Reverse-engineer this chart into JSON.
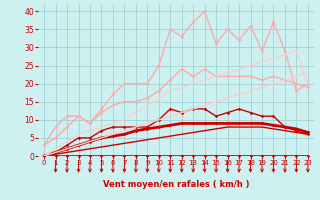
{
  "title": "",
  "xlabel": "Vent moyen/en rafales ( km/h )",
  "ylabel": "",
  "xlim": [
    -0.5,
    23.5
  ],
  "ylim": [
    0,
    42
  ],
  "xticks": [
    0,
    1,
    2,
    3,
    4,
    5,
    6,
    7,
    8,
    9,
    10,
    11,
    12,
    13,
    14,
    15,
    16,
    17,
    18,
    19,
    20,
    21,
    22,
    23
  ],
  "yticks": [
    0,
    5,
    10,
    15,
    20,
    25,
    30,
    35,
    40
  ],
  "bg_color": "#cdf0f0",
  "grid_color": "#99cccc",
  "lines": [
    {
      "x": [
        0,
        1,
        2,
        3,
        4,
        5,
        6,
        7,
        8,
        9,
        10,
        11,
        12,
        13,
        14,
        15,
        16,
        17,
        18,
        19,
        20,
        21,
        22,
        23
      ],
      "y": [
        0,
        0,
        0,
        0,
        0,
        0,
        0,
        0,
        0,
        0,
        0,
        0,
        0,
        0,
        0,
        0,
        0,
        0,
        0,
        0,
        0,
        0,
        0,
        0
      ],
      "color": "#cc0000",
      "lw": 1.2,
      "marker": "D",
      "ms": 1.8
    },
    {
      "x": [
        0,
        1,
        2,
        3,
        4,
        5,
        6,
        7,
        8,
        9,
        10,
        11,
        12,
        13,
        14,
        15,
        16,
        17,
        18,
        19,
        20,
        21,
        22,
        23
      ],
      "y": [
        0,
        0.5,
        1.0,
        1.5,
        2.0,
        2.5,
        3.0,
        3.5,
        4.0,
        4.5,
        5.0,
        5.5,
        6.0,
        6.5,
        7.0,
        7.5,
        8.0,
        8.0,
        8.0,
        8.0,
        7.5,
        7.0,
        6.5,
        6.0
      ],
      "color": "#cc0000",
      "lw": 1.0,
      "marker": null,
      "ms": 0
    },
    {
      "x": [
        0,
        1,
        2,
        3,
        4,
        5,
        6,
        7,
        8,
        9,
        10,
        11,
        12,
        13,
        14,
        15,
        16,
        17,
        18,
        19,
        20,
        21,
        22,
        23
      ],
      "y": [
        0,
        1,
        2,
        3,
        4,
        5,
        5.5,
        6,
        7,
        7.5,
        8,
        8.5,
        9,
        9,
        9,
        9,
        9,
        9,
        9,
        9,
        8.5,
        8,
        7.5,
        6.5
      ],
      "color": "#cc0000",
      "lw": 2.0,
      "marker": "D",
      "ms": 1.8
    },
    {
      "x": [
        0,
        1,
        2,
        3,
        4,
        5,
        6,
        7,
        8,
        9,
        10,
        11,
        12,
        13,
        14,
        15,
        16,
        17,
        18,
        19,
        20,
        21,
        22,
        23
      ],
      "y": [
        0,
        1,
        3,
        5,
        5,
        7,
        8,
        8,
        8,
        8,
        10,
        13,
        12,
        13,
        13,
        11,
        12,
        13,
        12,
        11,
        11,
        8,
        7,
        6
      ],
      "color": "#cc0000",
      "lw": 1.0,
      "marker": "D",
      "ms": 1.8
    },
    {
      "x": [
        0,
        1,
        2,
        3,
        4,
        5,
        6,
        7,
        8,
        9,
        10,
        11,
        12,
        13,
        14,
        15,
        16,
        17,
        18,
        19,
        20,
        21,
        22,
        23
      ],
      "y": [
        3,
        5,
        8,
        11,
        9,
        12,
        14,
        15,
        15,
        16,
        18,
        21,
        24,
        22,
        24,
        22,
        22,
        22,
        22,
        21,
        22,
        21,
        20,
        19
      ],
      "color": "#ffaaaa",
      "lw": 1.0,
      "marker": "D",
      "ms": 1.8
    },
    {
      "x": [
        0,
        1,
        2,
        3,
        4,
        5,
        6,
        7,
        8,
        9,
        10,
        11,
        12,
        13,
        14,
        15,
        16,
        17,
        18,
        19,
        20,
        21,
        22,
        23
      ],
      "y": [
        3,
        8,
        11,
        11,
        9,
        13,
        17,
        20,
        20,
        20,
        25,
        35,
        33,
        37,
        40,
        31,
        35,
        32,
        36,
        29,
        37,
        29,
        18,
        20
      ],
      "color": "#ffaaaa",
      "lw": 1.0,
      "marker": "D",
      "ms": 1.8
    },
    {
      "x": [
        0,
        1,
        2,
        3,
        4,
        5,
        6,
        7,
        8,
        9,
        10,
        11,
        12,
        13,
        14,
        15,
        16,
        17,
        18,
        19,
        20,
        21,
        22,
        23
      ],
      "y": [
        0,
        1,
        2,
        3,
        4,
        5,
        6,
        7,
        8,
        9,
        10,
        11,
        12,
        13,
        14,
        15,
        16,
        17,
        18,
        19,
        20,
        21,
        22,
        23
      ],
      "color": "#ffcccc",
      "lw": 1.0,
      "marker": null,
      "ms": 0
    },
    {
      "x": [
        0,
        1,
        2,
        3,
        4,
        5,
        6,
        7,
        8,
        9,
        10,
        11,
        12,
        13,
        14,
        15,
        16,
        17,
        18,
        19,
        20,
        21,
        22,
        23
      ],
      "y": [
        0,
        2,
        4,
        6,
        7,
        8,
        9,
        10,
        12,
        14,
        16,
        18,
        19,
        20,
        21,
        22,
        23,
        24,
        25,
        26,
        27,
        28,
        29,
        20
      ],
      "color": "#ffcccc",
      "lw": 1.0,
      "marker": null,
      "ms": 0
    }
  ],
  "arrow_color": "#cc0000",
  "tick_color": "#cc0000",
  "xlabel_color": "#cc0000",
  "xlabel_fontsize": 6.0,
  "tick_fontsize": 5.0
}
